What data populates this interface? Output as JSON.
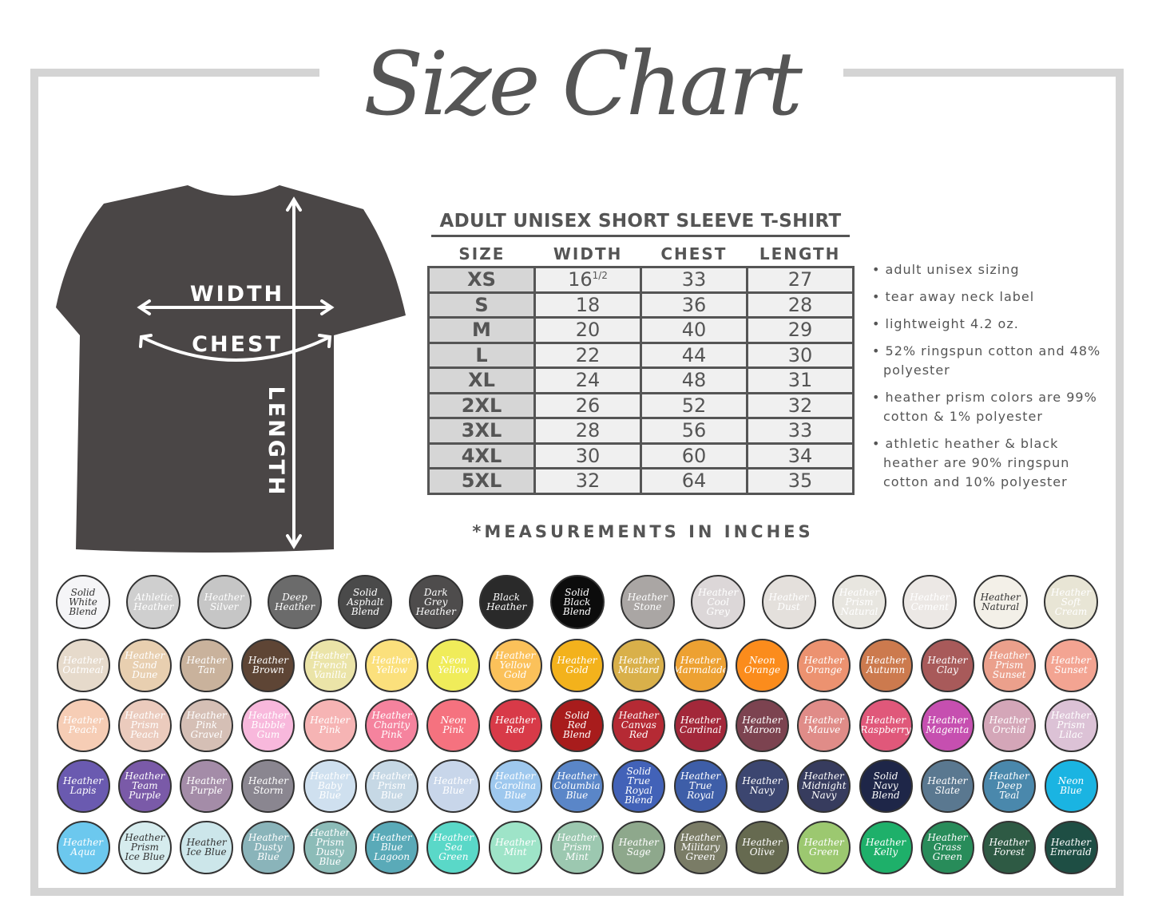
{
  "title": "Size Chart",
  "shirt": {
    "color": "#4a4646",
    "labels": {
      "width": "WIDTH",
      "chest": "CHEST",
      "length": "LENGTH"
    }
  },
  "table": {
    "title": "ADULT UNISEX SHORT SLEEVE T-SHIRT",
    "headers": [
      "SIZE",
      "WIDTH",
      "CHEST",
      "LENGTH"
    ],
    "rows": [
      {
        "size": "XS",
        "width": "16",
        "width_frac": "1/2",
        "chest": "33",
        "length": "27"
      },
      {
        "size": "S",
        "width": "18",
        "chest": "36",
        "length": "28"
      },
      {
        "size": "M",
        "width": "20",
        "chest": "40",
        "length": "29"
      },
      {
        "size": "L",
        "width": "22",
        "chest": "44",
        "length": "30"
      },
      {
        "size": "XL",
        "width": "24",
        "chest": "48",
        "length": "31"
      },
      {
        "size": "2XL",
        "width": "26",
        "chest": "52",
        "length": "32"
      },
      {
        "size": "3XL",
        "width": "28",
        "chest": "56",
        "length": "33"
      },
      {
        "size": "4XL",
        "width": "30",
        "chest": "60",
        "length": "34"
      },
      {
        "size": "5XL",
        "width": "32",
        "chest": "64",
        "length": "35"
      }
    ],
    "footnote": "*MEASUREMENTS IN INCHES"
  },
  "features": [
    "• adult unisex sizing",
    "• tear away neck label",
    "• lightweight 4.2 oz.",
    "• 52% ringspun cotton and 48% polyester",
    "• heather prism colors are 99% cotton & 1% polyester",
    "• athletic heather & black heather are 90% ringspun cotton and 10% polyester"
  ],
  "swatch_rows": [
    [
      {
        "name": "Solid White Blend",
        "color": "#f5f5f7",
        "dark": true
      },
      {
        "name": "Athletic Heather",
        "color": "#cfcfcf"
      },
      {
        "name": "Heather Silver",
        "color": "#c6c6c6"
      },
      {
        "name": "Deep Heather",
        "color": "#6b6b6b"
      },
      {
        "name": "Solid Asphalt Blend",
        "color": "#4a4a4a"
      },
      {
        "name": "Dark Grey Heather",
        "color": "#4e4c4c"
      },
      {
        "name": "Black Heather",
        "color": "#2a2a2a"
      },
      {
        "name": "Solid Black Blend",
        "color": "#0c0c0c"
      },
      {
        "name": "Heather Stone",
        "color": "#aaa6a4"
      },
      {
        "name": "Heather Cool Grey",
        "color": "#dcd7d8"
      },
      {
        "name": "Heather Dust",
        "color": "#e4e0dc"
      },
      {
        "name": "Heather Prism Natural",
        "color": "#e8e6e0"
      },
      {
        "name": "Heather Cement",
        "color": "#ece8e5"
      },
      {
        "name": "Heather Natural",
        "color": "#f3f0e8",
        "dark": true
      },
      {
        "name": "Heather Soft Cream",
        "color": "#e8e5d5"
      }
    ],
    [
      {
        "name": "Heather Oatmeal",
        "color": "#e6dacb"
      },
      {
        "name": "Heather Sand Dune",
        "color": "#e8cfb0"
      },
      {
        "name": "Heather Tan",
        "color": "#c9b29c"
      },
      {
        "name": "Heather Brown",
        "color": "#5e4535"
      },
      {
        "name": "Heather French Vanilla",
        "color": "#ebe4a8"
      },
      {
        "name": "Heather Yellow",
        "color": "#fbe07c"
      },
      {
        "name": "Neon Yellow",
        "color": "#f0ec5a"
      },
      {
        "name": "Heather Yellow Gold",
        "color": "#fbc15a"
      },
      {
        "name": "Heather Gold",
        "color": "#f3b21c"
      },
      {
        "name": "Heather Mustard",
        "color": "#d9b04a"
      },
      {
        "name": "Heather Marmalade",
        "color": "#eda132"
      },
      {
        "name": "Neon Orange",
        "color": "#fb8c1c"
      },
      {
        "name": "Heather Orange",
        "color": "#ec9270"
      },
      {
        "name": "Heather Autumn",
        "color": "#cc7a4e"
      },
      {
        "name": "Heather Clay",
        "color": "#a85a5a"
      },
      {
        "name": "Heather Prism Sunset",
        "color": "#eba08c"
      },
      {
        "name": "Heather Sunset",
        "color": "#f3a492"
      }
    ],
    [
      {
        "name": "Heather Peach",
        "color": "#f6cdb5"
      },
      {
        "name": "Heather Prism Peach",
        "color": "#ebcbbd"
      },
      {
        "name": "Heather Pink Gravel",
        "color": "#d5bfb5"
      },
      {
        "name": "Heather Bubble Gum",
        "color": "#f8b8dc"
      },
      {
        "name": "Heather Pink",
        "color": "#f6b4b4"
      },
      {
        "name": "Heather Charity Pink",
        "color": "#f5839e"
      },
      {
        "name": "Neon Pink",
        "color": "#f5727f"
      },
      {
        "name": "Heather Red",
        "color": "#d83a48"
      },
      {
        "name": "Solid Red Blend",
        "color": "#a81c1c"
      },
      {
        "name": "Heather Canvas Red",
        "color": "#b52a34"
      },
      {
        "name": "Heather Cardinal",
        "color": "#a3283a"
      },
      {
        "name": "Heather Maroon",
        "color": "#7c4350"
      },
      {
        "name": "Heather Mauve",
        "color": "#e08c88"
      },
      {
        "name": "Heather Raspberry",
        "color": "#e0587a"
      },
      {
        "name": "Heather Magenta",
        "color": "#c64fb0"
      },
      {
        "name": "Heather Orchid",
        "color": "#d4a6b8"
      },
      {
        "name": "Heather Prism Lilac",
        "color": "#dcc2d6"
      }
    ],
    [
      {
        "name": "Heather Lapis",
        "color": "#6a5ab0"
      },
      {
        "name": "Heather Team Purple",
        "color": "#7a5aa8"
      },
      {
        "name": "Heather Purple",
        "color": "#a48ca8"
      },
      {
        "name": "Heather Storm",
        "color": "#8a8690"
      },
      {
        "name": "Heather Baby Blue",
        "color": "#cfe0ef"
      },
      {
        "name": "Heather Prism Blue",
        "color": "#c6d8e5"
      },
      {
        "name": "Heather Blue",
        "color": "#c8d6ea"
      },
      {
        "name": "Heather Carolina Blue",
        "color": "#9ec8ee"
      },
      {
        "name": "Heather Columbia Blue",
        "color": "#5a86c8"
      },
      {
        "name": "Solid True Royal Blend",
        "color": "#4262b8"
      },
      {
        "name": "Heather True Royal",
        "color": "#3e5ea8"
      },
      {
        "name": "Heather Navy",
        "color": "#3c4670"
      },
      {
        "name": "Heather Midnight Navy",
        "color": "#373c5e"
      },
      {
        "name": "Solid Navy Blend",
        "color": "#1e2648"
      },
      {
        "name": "Heather Slate",
        "color": "#5a7890"
      },
      {
        "name": "Heather Deep Teal",
        "color": "#4a88ac"
      },
      {
        "name": "Neon Blue",
        "color": "#1ab4e2"
      }
    ],
    [
      {
        "name": "Heather Aqua",
        "color": "#6cc8ee"
      },
      {
        "name": "Heather Prism Ice Blue",
        "color": "#d6ecee",
        "dark": true
      },
      {
        "name": "Heather Ice Blue",
        "color": "#cce6ea",
        "dark": true
      },
      {
        "name": "Heather Dusty Blue",
        "color": "#8ab4ba"
      },
      {
        "name": "Heather Prism Dusty Blue",
        "color": "#8cbcb8"
      },
      {
        "name": "Heather Blue Lagoon",
        "color": "#5aaab8"
      },
      {
        "name": "Heather Sea Green",
        "color": "#5ad8c8"
      },
      {
        "name": "Heather Mint",
        "color": "#9ee4c8"
      },
      {
        "name": "Heather Prism Mint",
        "color": "#9cc8b0"
      },
      {
        "name": "Heather Sage",
        "color": "#8ea88c"
      },
      {
        "name": "Heather Military Green",
        "color": "#7a7c66"
      },
      {
        "name": "Heather Olive",
        "color": "#666a50"
      },
      {
        "name": "Heather Green",
        "color": "#9cc870"
      },
      {
        "name": "Heather Kelly",
        "color": "#1eb06a"
      },
      {
        "name": "Heather Grass Green",
        "color": "#288c5a"
      },
      {
        "name": "Heather Forest",
        "color": "#2e5a44"
      },
      {
        "name": "Heather Emerald",
        "color": "#1e4e44"
      }
    ]
  ]
}
